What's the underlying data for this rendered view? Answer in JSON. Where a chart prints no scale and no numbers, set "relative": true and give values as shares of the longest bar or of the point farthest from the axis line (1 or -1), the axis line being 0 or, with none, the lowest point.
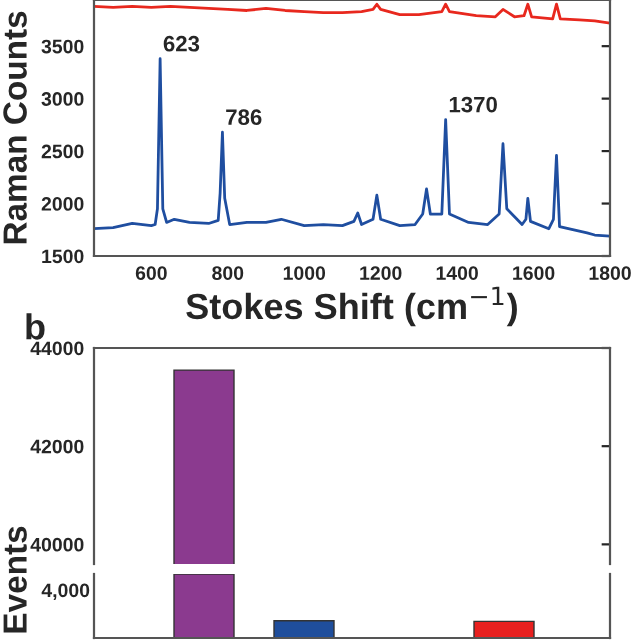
{
  "chart_data": [
    {
      "type": "line",
      "ylabel": "Raman Counts",
      "xlabel": "Stokes Shift (cm$^{−1}$)",
      "xlim": [
        450,
        1800
      ],
      "ylim": [
        1500,
        3940
      ],
      "xticks": [
        600,
        800,
        1000,
        1200,
        1400,
        1600,
        1800
      ],
      "yticks": [
        1500,
        2000,
        2500,
        3000,
        3500
      ],
      "grid": false,
      "legend": false,
      "series": [
        {
          "color": "#e8281e",
          "x": [
            450,
            500,
            550,
            600,
            650,
            700,
            750,
            800,
            850,
            900,
            950,
            1000,
            1050,
            1100,
            1150,
            1180,
            1190,
            1200,
            1250,
            1300,
            1360,
            1370,
            1380,
            1450,
            1500,
            1520,
            1550,
            1575,
            1585,
            1595,
            1650,
            1660,
            1670,
            1720,
            1760,
            1800
          ],
          "values": [
            3880,
            3870,
            3880,
            3870,
            3880,
            3870,
            3860,
            3850,
            3840,
            3860,
            3840,
            3830,
            3820,
            3820,
            3830,
            3850,
            3900,
            3850,
            3800,
            3800,
            3830,
            3900,
            3830,
            3790,
            3780,
            3850,
            3780,
            3790,
            3900,
            3780,
            3760,
            3900,
            3760,
            3750,
            3740,
            3720
          ]
        },
        {
          "color": "#1f4ea0",
          "x": [
            450,
            500,
            550,
            600,
            610,
            616,
            623,
            630,
            640,
            660,
            700,
            750,
            775,
            780,
            786,
            792,
            805,
            850,
            900,
            940,
            1000,
            1050,
            1100,
            1130,
            1140,
            1150,
            1180,
            1190,
            1200,
            1250,
            1290,
            1310,
            1320,
            1330,
            1360,
            1370,
            1380,
            1430,
            1480,
            1510,
            1520,
            1530,
            1570,
            1580,
            1585,
            1592,
            1640,
            1652,
            1660,
            1668,
            1740,
            1760,
            1800
          ],
          "values": [
            1760,
            1770,
            1810,
            1790,
            1800,
            1950,
            3380,
            1950,
            1820,
            1850,
            1820,
            1810,
            1840,
            2100,
            2680,
            2050,
            1800,
            1820,
            1820,
            1850,
            1790,
            1800,
            1790,
            1830,
            1910,
            1800,
            1850,
            2080,
            1850,
            1790,
            1800,
            1900,
            2140,
            1900,
            1900,
            2800,
            1900,
            1820,
            1800,
            1900,
            2570,
            1950,
            1800,
            1850,
            2050,
            1830,
            1760,
            1850,
            2460,
            1780,
            1720,
            1700,
            1690
          ]
        }
      ],
      "annotations": [
        {
          "text": "623",
          "x": 623,
          "y": 3380
        },
        {
          "text": "786",
          "x": 786,
          "y": 2680
        },
        {
          "text": "1370",
          "x": 1370,
          "y": 2800
        }
      ]
    },
    {
      "type": "bar",
      "categories": [
        null,
        null,
        null,
        null
      ],
      "values": [
        43550,
        null,
        null,
        null
      ],
      "colors": [
        "#8b3a8f",
        "#1f4e9c",
        "#1f4e9c",
        "#e8201f"
      ],
      "ylim": [
        39600,
        44000
      ],
      "yticks": [
        40000,
        42000,
        44000
      ],
      "grid": false,
      "legend": false,
      "annotations": [
        "b"
      ]
    },
    {
      "type": "bar",
      "ylabel": "Events",
      "relative": true,
      "categories": [
        null,
        null,
        null,
        null
      ],
      "values": [
        1,
        0.27,
        null,
        0.26
      ],
      "colors": [
        "#8b3a8f",
        "#1f4e9c",
        "#1f4e9c",
        "#e8201f"
      ],
      "grid": false,
      "legend": false,
      "annotations": [
        "4,000"
      ]
    }
  ]
}
